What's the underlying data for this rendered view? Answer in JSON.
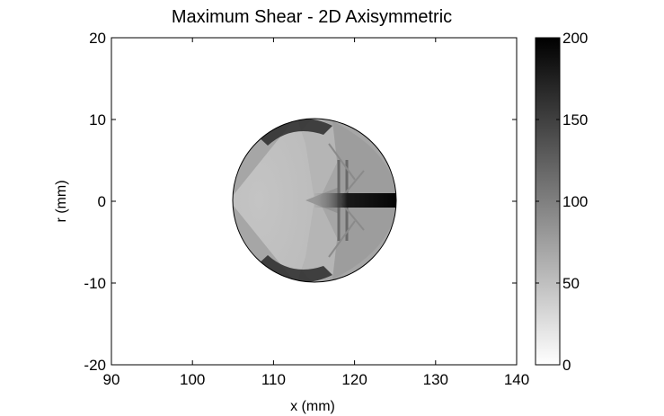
{
  "chart_data": {
    "type": "heatmap",
    "title": "Maximum Shear - 2D Axisymmetric",
    "xlabel": "x (mm)",
    "ylabel": "r (mm)",
    "xlim": [
      90,
      140
    ],
    "ylim": [
      -20,
      20
    ],
    "xticks": [
      "90",
      "100",
      "110",
      "120",
      "130",
      "140"
    ],
    "yticks": [
      "20",
      "10",
      "0",
      "-10",
      "-20"
    ],
    "colorbar": {
      "range": [
        0,
        200
      ],
      "ticks": [
        "200",
        "150",
        "100",
        "50",
        "0"
      ],
      "colormap": "gray-reversed"
    },
    "field": {
      "shape": "circle",
      "center": [
        115,
        0
      ],
      "radius": 10,
      "background_value": 0,
      "regions": [
        {
          "name": "left cap",
          "x": [
            105,
            113
          ],
          "value": 45
        },
        {
          "name": "cone",
          "x": [
            110,
            118
          ],
          "value": 75
        },
        {
          "name": "upper rim band",
          "x": [
            109,
            114
          ],
          "r": [
            8,
            10
          ],
          "value": 170
        },
        {
          "name": "lower rim band",
          "x": [
            109,
            114
          ],
          "r": [
            -10,
            -8
          ],
          "value": 170
        },
        {
          "name": "axial streak",
          "x": [
            119,
            125
          ],
          "r": [
            -1,
            1
          ],
          "value": 200
        },
        {
          "name": "shock front",
          "x": [
            117.5,
            118.5
          ],
          "value": 110
        }
      ]
    }
  },
  "colors": {
    "background": "#ffffff",
    "axis": "#000000",
    "circle_outline": "#000000"
  }
}
